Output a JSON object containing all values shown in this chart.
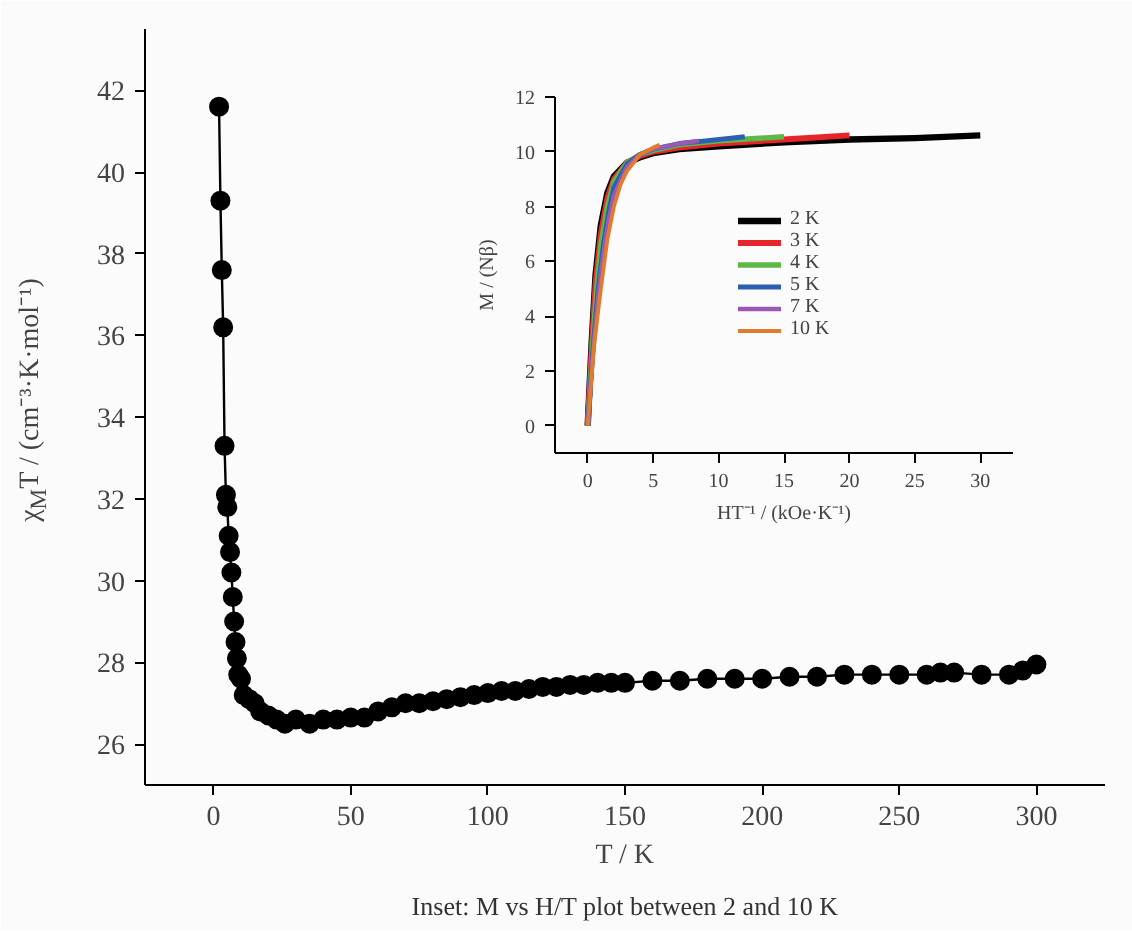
{
  "chart_data": [
    {
      "type": "line",
      "xlabel": "T / K",
      "ylabel": "χ$_{M}$T / (cm⁻³·K·mol⁻¹)",
      "xlim": [
        -25,
        325
      ],
      "ylim": [
        25,
        43.5
      ],
      "xticks": [
        0,
        50,
        100,
        150,
        200,
        250,
        300
      ],
      "yticks": [
        26,
        28,
        30,
        32,
        34,
        36,
        38,
        40,
        42
      ],
      "grid": false,
      "legend": false,
      "marker": "circle",
      "line_style": "solid",
      "annotations": [
        "Inset: M vs H/T plot between 2 and 10 K"
      ],
      "series": [
        {
          "color": "#000000",
          "x": [
            2,
            2.5,
            3,
            3.5,
            4,
            4.5,
            5,
            5.5,
            6,
            6.5,
            7,
            7.5,
            8,
            8.5,
            9,
            10,
            11,
            13,
            15,
            17,
            20,
            23,
            26,
            30,
            35,
            40,
            45,
            50,
            55,
            60,
            65,
            70,
            75,
            80,
            85,
            90,
            95,
            100,
            105,
            110,
            115,
            120,
            125,
            130,
            135,
            140,
            145,
            150,
            160,
            170,
            180,
            190,
            200,
            210,
            220,
            230,
            240,
            250,
            260,
            265,
            270,
            280,
            290,
            295,
            300
          ],
          "values": [
            41.6,
            39.3,
            37.6,
            36.2,
            33.3,
            32.1,
            31.8,
            31.1,
            30.7,
            30.2,
            29.6,
            29.0,
            28.5,
            28.1,
            27.7,
            27.6,
            27.2,
            27.1,
            27.0,
            26.8,
            26.7,
            26.6,
            26.5,
            26.6,
            26.5,
            26.6,
            26.6,
            26.65,
            26.65,
            26.8,
            26.9,
            27.0,
            27.0,
            27.05,
            27.1,
            27.15,
            27.2,
            27.25,
            27.3,
            27.3,
            27.35,
            27.4,
            27.4,
            27.45,
            27.45,
            27.5,
            27.5,
            27.5,
            27.55,
            27.55,
            27.6,
            27.6,
            27.6,
            27.65,
            27.65,
            27.7,
            27.7,
            27.7,
            27.7,
            27.75,
            27.75,
            27.7,
            27.7,
            27.8,
            27.95
          ]
        }
      ]
    },
    {
      "type": "line",
      "xlabel": "HT⁻¹ / (kOe·K⁻¹)",
      "ylabel": "M / (Nβ)",
      "xlim": [
        -2.5,
        32.5
      ],
      "ylim": [
        -1,
        12
      ],
      "xticks": [
        0,
        5,
        10,
        15,
        20,
        25,
        30
      ],
      "yticks": [
        0,
        2,
        4,
        6,
        8,
        10,
        12
      ],
      "grid": false,
      "legend": "center",
      "marker": "none",
      "line_style": "solid",
      "series": [
        {
          "name": "2 K",
          "color": "#000000",
          "x": [
            0,
            0.3,
            0.6,
            1,
            1.5,
            2,
            3,
            4,
            5,
            7,
            10,
            15,
            20,
            25,
            30
          ],
          "values": [
            0,
            3,
            5.5,
            7.3,
            8.5,
            9.1,
            9.6,
            9.8,
            9.95,
            10.1,
            10.2,
            10.35,
            10.45,
            10.5,
            10.6
          ]
        },
        {
          "name": "3 K",
          "color": "#e8242b",
          "x": [
            0,
            0.3,
            0.6,
            1,
            1.5,
            2,
            3,
            4,
            5,
            7,
            10,
            15,
            20
          ],
          "values": [
            0,
            2.8,
            5.2,
            7.0,
            8.3,
            9.0,
            9.6,
            9.85,
            10.0,
            10.15,
            10.3,
            10.45,
            10.6
          ]
        },
        {
          "name": "4 K",
          "color": "#5cb946",
          "x": [
            0,
            0.35,
            0.7,
            1,
            1.5,
            2,
            3,
            4,
            5,
            7,
            10,
            15
          ],
          "values": [
            0,
            2.8,
            5.1,
            6.6,
            8.0,
            8.9,
            9.6,
            9.9,
            10.05,
            10.25,
            10.4,
            10.55
          ]
        },
        {
          "name": "5 K",
          "color": "#2a5fb4",
          "x": [
            0,
            0.4,
            0.8,
            1.2,
            1.6,
            2,
            3,
            4,
            5,
            7,
            9,
            12
          ],
          "values": [
            0,
            2.8,
            5.0,
            6.6,
            7.8,
            8.7,
            9.55,
            9.9,
            10.1,
            10.3,
            10.4,
            10.55
          ]
        },
        {
          "name": "7 K",
          "color": "#9b59b6",
          "x": [
            0,
            0.4,
            0.8,
            1.2,
            1.6,
            2,
            3,
            4,
            5,
            6,
            7,
            8.5
          ],
          "values": [
            0,
            2.6,
            4.7,
            6.3,
            7.5,
            8.4,
            9.45,
            9.9,
            10.1,
            10.2,
            10.3,
            10.4
          ]
        },
        {
          "name": "10 K",
          "color": "#e07b30",
          "x": [
            0,
            0.5,
            1,
            1.5,
            2,
            2.5,
            3,
            4,
            5,
            5.5
          ],
          "values": [
            0,
            3,
            5,
            6.8,
            8,
            8.8,
            9.3,
            9.9,
            10.15,
            10.25
          ]
        }
      ]
    }
  ]
}
